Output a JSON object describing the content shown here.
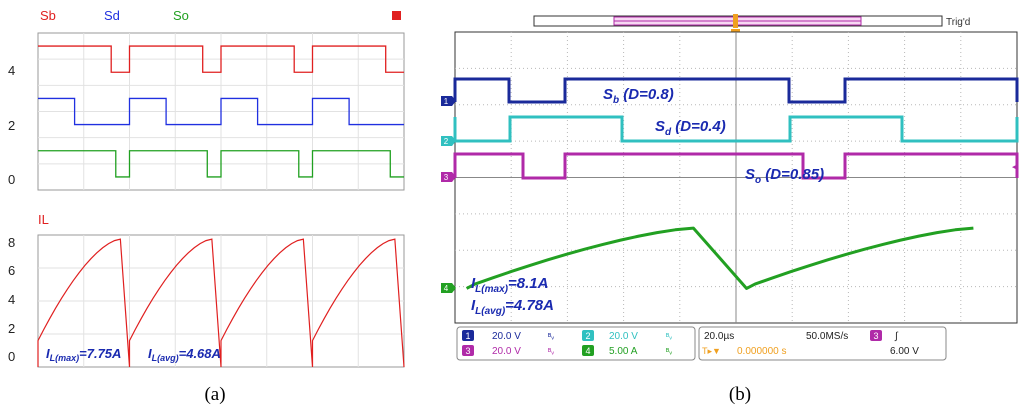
{
  "panel_a": {
    "caption": "(a)",
    "chart_data": [
      {
        "type": "line",
        "title": "",
        "legend": [
          "Sb",
          "Sd",
          "So"
        ],
        "legend_colors": [
          "#e02020",
          "#2030e0",
          "#20a020"
        ],
        "y_ticks": [
          "4",
          "2",
          "0"
        ],
        "ylim": [
          -0.5,
          5.5
        ],
        "xlim": [
          0,
          4
        ],
        "grid": true,
        "periods": 4,
        "series": [
          {
            "name": "Sb",
            "color": "#e02020",
            "high": 5,
            "low": 4,
            "duty": 0.8
          },
          {
            "name": "Sd",
            "color": "#2030e0",
            "high": 3,
            "low": 2,
            "duty": 0.4
          },
          {
            "name": "So",
            "color": "#20a020",
            "high": 1,
            "low": 0,
            "duty": 0.85
          }
        ]
      },
      {
        "type": "line",
        "title": "IL",
        "title_color": "#e02020",
        "y_ticks": [
          "8",
          "6",
          "4",
          "2",
          "0"
        ],
        "ylim": [
          0,
          8
        ],
        "xlim": [
          0,
          4
        ],
        "grid": true,
        "periods": 4,
        "series": [
          {
            "name": "IL",
            "color": "#e02020",
            "min": 1.6,
            "max": 7.75,
            "fall_fraction": 0.1
          }
        ],
        "annotations": [
          {
            "main": "I",
            "sub": "L(max)",
            "value": "=7.75A"
          },
          {
            "main": "I",
            "sub": "L(avg)",
            "value": "=4.68A"
          }
        ]
      }
    ]
  },
  "panel_b": {
    "caption": "(b)",
    "trigger_status": "Trig'd",
    "trigger_marker": "T",
    "channel_markers": [
      "1",
      "2",
      "3",
      "4"
    ],
    "trigger_level_marker": "◄",
    "annotations": [
      {
        "main": "S",
        "sub": "b",
        "rest": " (D=0.8)"
      },
      {
        "main": "S",
        "sub": "d",
        "rest": " (D=0.4)"
      },
      {
        "main": "S",
        "sub": "o",
        "rest": " (D=0.85)"
      }
    ],
    "current_annotations": [
      {
        "main": "I",
        "sub": "L(max)",
        "value": "=8.1A"
      },
      {
        "main": "I",
        "sub": "L(avg)",
        "value": "=4.78A"
      }
    ],
    "chart_data": {
      "type": "line",
      "title": "",
      "grid": true,
      "divisions_x": 10,
      "divisions_y": 8,
      "series": [
        {
          "name": "Ch1",
          "color": "#1a2a9a",
          "duty": 0.8
        },
        {
          "name": "Ch2",
          "color": "#30c0c0",
          "duty": 0.4
        },
        {
          "name": "Ch3",
          "color": "#b02aa8",
          "duty": 0.85
        },
        {
          "name": "Ch4",
          "color": "#22a022",
          "max": 8.1,
          "avg": 4.78
        }
      ]
    },
    "status_bar": {
      "ch1": {
        "num": "1",
        "scale": "20.0 V",
        "bw": "ᴮᵥ",
        "color": "#1a2a9a"
      },
      "ch2": {
        "num": "2",
        "scale": "20.0 V",
        "bw": "ᴮᵥ",
        "color": "#30c0c0"
      },
      "ch3": {
        "num": "3",
        "scale": "20.0 V",
        "bw": "ᴮᵥ",
        "color": "#b02aa8"
      },
      "ch4": {
        "num": "4",
        "scale": "5.00 A",
        "bw": "ᴮᵥ",
        "color": "#22a022"
      },
      "timebase": "20.0µs",
      "sample_rate": "50.0MS/s",
      "trigger_offset": "0.000000 s",
      "trigger_prefix": "T▸▼",
      "trigger_channel": "3",
      "trigger_slope": "∫",
      "trigger_level": "6.00 V"
    }
  }
}
